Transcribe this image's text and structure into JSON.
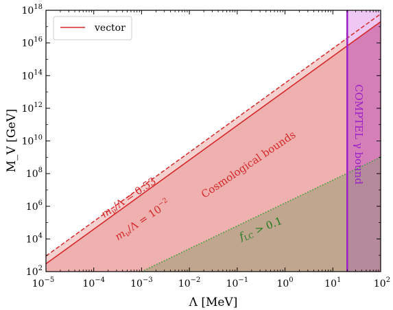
{
  "chart_data": {
    "type": "area",
    "xlabel": "Λ [MeV]",
    "ylabel": "M_V [GeV]",
    "xscale": "log",
    "yscale": "log",
    "xlim": [
      1e-05,
      100
    ],
    "ylim": [
      100,
      1e+18
    ],
    "x_ticks": [
      {
        "value": 1e-05,
        "base": "10",
        "exp": "−5"
      },
      {
        "value": 0.0001,
        "base": "10",
        "exp": "−4"
      },
      {
        "value": 0.001,
        "base": "10",
        "exp": "−3"
      },
      {
        "value": 0.01,
        "base": "10",
        "exp": "−2"
      },
      {
        "value": 0.1,
        "base": "10",
        "exp": "−1"
      },
      {
        "value": 1,
        "base": "10",
        "exp": "0"
      },
      {
        "value": 10,
        "base": "10",
        "exp": "1"
      },
      {
        "value": 100,
        "base": "10",
        "exp": "2"
      }
    ],
    "y_ticks": [
      {
        "value": 100,
        "base": "10",
        "exp": "2"
      },
      {
        "value": 10000,
        "base": "10",
        "exp": "4"
      },
      {
        "value": 1000000,
        "base": "10",
        "exp": "6"
      },
      {
        "value": 100000000,
        "base": "10",
        "exp": "8"
      },
      {
        "value": 10000000000,
        "base": "10",
        "exp": "10"
      },
      {
        "value": 1000000000000,
        "base": "10",
        "exp": "12"
      },
      {
        "value": 100000000000000,
        "base": "10",
        "exp": "14"
      },
      {
        "value": 10000000000000000,
        "base": "10",
        "exp": "16"
      },
      {
        "value": 1e+18,
        "base": "10",
        "exp": "18"
      }
    ],
    "legend": {
      "placement": "top-left",
      "entries": [
        {
          "label": "vector",
          "color": "#d62728"
        }
      ]
    },
    "series": [
      {
        "name": "vector",
        "style": "solid",
        "color": "#d62728",
        "x": [
          1e-05,
          100
        ],
        "y": [
          300,
          2e+17
        ]
      },
      {
        "style": "dashed",
        "color": "#d62728",
        "x": [
          1e-05,
          100
        ],
        "y": [
          900,
          6e+17
        ]
      },
      {
        "style": "dotted",
        "color": "#2ca02c",
        "x": [
          0.001,
          100
        ],
        "y": [
          100,
          1000000000.0
        ]
      }
    ],
    "vertical_line": {
      "x": 20,
      "color": "#9b1fc8"
    },
    "colors": {
      "cosmo_fill": "#efb0b0",
      "light_band": "#f6d0cf",
      "green_fill": "#c0a68e",
      "compton_fill": "#d47fb7",
      "compton_over_green": "#b58a9b",
      "compton_top": "#eec8f2"
    },
    "annotations": {
      "ratio_dashed": {
        "prefix": "m",
        "sub": "ν",
        "suffix": "/Λ = 0.53"
      },
      "ratio_solid": {
        "prefix": "m",
        "sub": "ν",
        "suffix": "/Λ = 10",
        "sup": "−2"
      },
      "cosmo": "Cosmological bounds",
      "f_label": {
        "prefix": "f",
        "sub": "LC",
        "suffix": " > 0.1"
      },
      "comptel": "COMPTEL γ bound"
    }
  }
}
